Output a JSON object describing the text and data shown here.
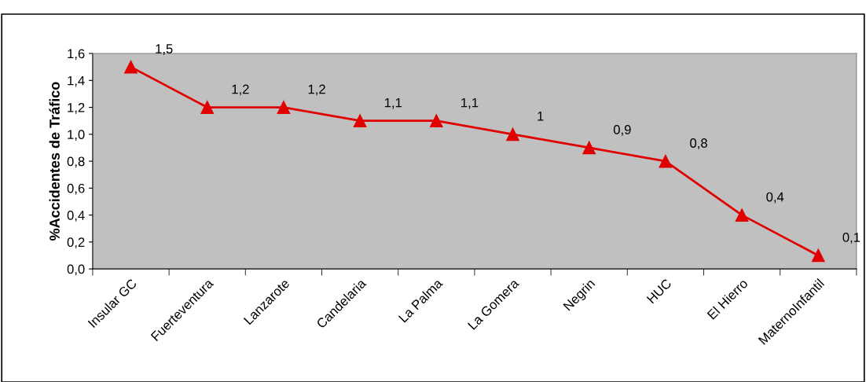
{
  "chart_data": {
    "type": "line",
    "ylabel": "%Accidentes de Tráfico",
    "categories": [
      "Insular GC",
      "Fuerteventura",
      "Lanzarote",
      "Candelaria",
      "La Palma",
      "La Gomera",
      "Negrin",
      "HUC",
      "El Hierro",
      "MaternoInfantil"
    ],
    "series": [
      {
        "color": "#e00000",
        "values": [
          1.5,
          1.2,
          1.2,
          1.1,
          1.1,
          1.0,
          0.9,
          0.8,
          0.4,
          0.1
        ],
        "value_labels": [
          "1,5",
          "1,2",
          "1,2",
          "1,1",
          "1,1",
          "1",
          "0,9",
          "0,8",
          "0,4",
          "0,1"
        ]
      }
    ],
    "ylim": [
      0,
      1.6
    ],
    "yticks": [
      {
        "value": 0,
        "label": "0,0"
      },
      {
        "value": 0.2,
        "label": "0,2"
      },
      {
        "value": 0.4,
        "label": "0,4"
      },
      {
        "value": 0.6,
        "label": "0,6"
      },
      {
        "value": 0.8,
        "label": "0,8"
      },
      {
        "value": 1.0,
        "label": "1,0"
      },
      {
        "value": 1.2,
        "label": "1,2"
      },
      {
        "value": 1.4,
        "label": "1,4"
      },
      {
        "value": 1.6,
        "label": "1,6"
      }
    ],
    "marker": "triangle",
    "line_style": "solid",
    "grid": false,
    "legend": false
  }
}
